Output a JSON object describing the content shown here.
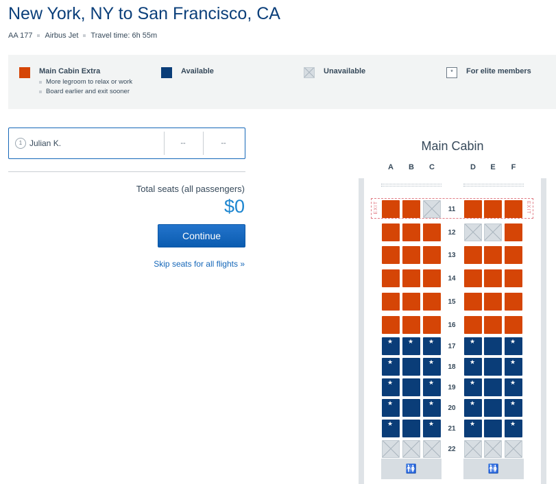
{
  "header": {
    "title": "New York, NY to San Francisco, CA",
    "flight_number": "AA 177",
    "aircraft": "Airbus Jet",
    "travel_time": "Travel time: 6h 55m"
  },
  "legend": {
    "main_cabin_extra": {
      "label": "Main Cabin Extra",
      "benefits": [
        "More legroom to relax or work",
        "Board earlier and exit sooner"
      ],
      "color": "#d54506"
    },
    "available": {
      "label": "Available",
      "color": "#0a3d78"
    },
    "unavailable": {
      "label": "Unavailable",
      "color": "#d7dde2"
    },
    "elite": {
      "label": "For elite members",
      "symbol": "*"
    }
  },
  "passenger": {
    "number": "1",
    "name": "Julian K.",
    "seat_1": "--",
    "seat_2": "--"
  },
  "summary": {
    "total_label": "Total seats (all passengers)",
    "total_amount": "$0",
    "continue_label": "Continue",
    "skip_label": "Skip seats for all flights »"
  },
  "seatmap": {
    "cabin_title": "Main Cabin",
    "columns_left": [
      "A",
      "B",
      "C"
    ],
    "columns_right": [
      "D",
      "E",
      "F"
    ],
    "exit_label": "EXIT",
    "lavatory_icon": "lavatory-icon",
    "rows": [
      {
        "row": "11",
        "exit": true,
        "seats": [
          "extra",
          "extra",
          "unav",
          "extra",
          "extra",
          "extra"
        ]
      },
      {
        "row": "12",
        "exit": false,
        "seats": [
          "extra",
          "extra",
          "extra",
          "unav",
          "unav",
          "extra"
        ]
      },
      {
        "row": "13",
        "exit": false,
        "seats": [
          "extra",
          "extra",
          "extra",
          "extra",
          "extra",
          "extra"
        ]
      },
      {
        "row": "14",
        "exit": false,
        "seats": [
          "extra",
          "extra",
          "extra",
          "extra",
          "extra",
          "extra"
        ]
      },
      {
        "row": "15",
        "exit": false,
        "seats": [
          "extra",
          "extra",
          "extra",
          "extra",
          "extra",
          "extra"
        ]
      },
      {
        "row": "16",
        "exit": false,
        "seats": [
          "extra",
          "extra",
          "extra",
          "extra",
          "extra",
          "extra"
        ]
      },
      {
        "row": "17",
        "exit": false,
        "seats": [
          "elite",
          "elite",
          "elite",
          "elite",
          "avail",
          "elite"
        ]
      },
      {
        "row": "18",
        "exit": false,
        "seats": [
          "elite",
          "avail",
          "elite",
          "elite",
          "avail",
          "elite"
        ]
      },
      {
        "row": "19",
        "exit": false,
        "seats": [
          "elite",
          "avail",
          "elite",
          "elite",
          "avail",
          "elite"
        ]
      },
      {
        "row": "20",
        "exit": false,
        "seats": [
          "elite",
          "avail",
          "elite",
          "elite",
          "avail",
          "elite"
        ]
      },
      {
        "row": "21",
        "exit": false,
        "seats": [
          "elite",
          "avail",
          "elite",
          "elite",
          "avail",
          "elite"
        ]
      },
      {
        "row": "22",
        "exit": false,
        "seats": [
          "unav",
          "unav",
          "unav",
          "unav",
          "unav",
          "unav"
        ]
      }
    ]
  }
}
